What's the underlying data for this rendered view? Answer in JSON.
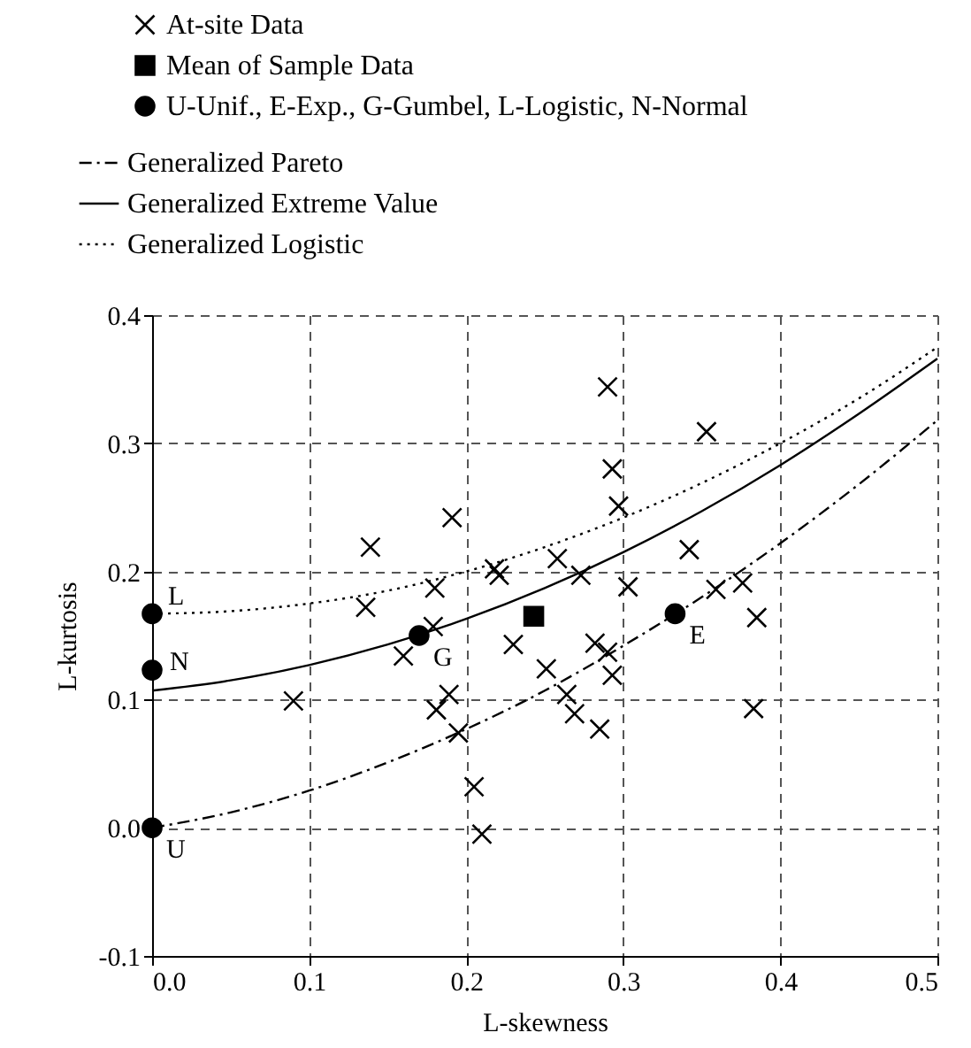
{
  "chart_data": {
    "type": "scatter",
    "xlabel": "L-skewness",
    "ylabel": "L-kurtosis",
    "xlim": [
      0,
      0.5
    ],
    "xticks": [
      {
        "value": 0,
        "label": "0.0"
      },
      0.1,
      0.2,
      0.3,
      0.4,
      0.5
    ],
    "ylim": [
      -0.1,
      0.4
    ],
    "yticks": [
      -0.1,
      {
        "value": 0,
        "label": "0.0"
      },
      0.1,
      0.2,
      0.3,
      0.4
    ],
    "grid": true,
    "legend": "top left",
    "series": [
      {
        "name": "At-site Data",
        "type": "scatter",
        "marker": "cross",
        "color": "#000000",
        "x": [
          0.09,
          0.139,
          0.136,
          0.191,
          0.18,
          0.16,
          0.179,
          0.189,
          0.181,
          0.195,
          0.205,
          0.21,
          0.218,
          0.221,
          0.258,
          0.29,
          0.353,
          0.293,
          0.297,
          0.273,
          0.303,
          0.342,
          0.359,
          0.376,
          0.385,
          0.383,
          0.23,
          0.251,
          0.282,
          0.29,
          0.293,
          0.264,
          0.269,
          0.285
        ],
        "values": [
          0.099,
          0.219,
          0.172,
          0.242,
          0.187,
          0.134,
          0.157,
          0.104,
          0.092,
          0.074,
          0.032,
          -0.005,
          0.202,
          0.197,
          0.21,
          0.344,
          0.309,
          0.28,
          0.251,
          0.197,
          0.188,
          0.217,
          0.186,
          0.191,
          0.164,
          0.093,
          0.143,
          0.124,
          0.144,
          0.137,
          0.119,
          0.104,
          0.089,
          0.077
        ]
      },
      {
        "name": "Mean of Sample Data",
        "type": "scatter",
        "marker": "square",
        "color": "#000000",
        "x": [
          0.243
        ],
        "values": [
          0.165
        ]
      },
      {
        "name": "U-Unif., E-Exp., G-Gumbel, L-Logistic, N-Normal",
        "type": "scatter",
        "marker": "circle",
        "color": "#000000",
        "x": [
          0,
          0.333,
          0.17,
          0,
          0
        ],
        "values": [
          0,
          0.167,
          0.15,
          0.167,
          0.123
        ]
      },
      {
        "name": "Generalized Pareto",
        "type": "line",
        "line_style": "dashed",
        "color": "#000000",
        "x": [
          0,
          0.05,
          0.1,
          0.15,
          0.2,
          0.25,
          0.3,
          0.35,
          0.4,
          0.45,
          0.5
        ],
        "values": [
          0,
          0.012,
          0.029,
          0.051,
          0.077,
          0.107,
          0.142,
          0.18,
          0.222,
          0.268,
          0.318
        ]
      },
      {
        "name": "Generalized Extreme Value",
        "type": "line",
        "line_style": "solid",
        "color": "#000000",
        "x": [
          0,
          0.05,
          0.1,
          0.15,
          0.2,
          0.25,
          0.3,
          0.35,
          0.4,
          0.45,
          0.5
        ],
        "values": [
          0.107,
          0.115,
          0.127,
          0.143,
          0.163,
          0.187,
          0.215,
          0.247,
          0.283,
          0.323,
          0.366
        ]
      },
      {
        "name": "Generalized Logistic",
        "type": "line",
        "line_style": "dotted",
        "color": "#000000",
        "x": [
          0,
          0.05,
          0.1,
          0.15,
          0.2,
          0.25,
          0.3,
          0.35,
          0.4,
          0.45,
          0.5
        ],
        "values": [
          0.167,
          0.169,
          0.175,
          0.185,
          0.2,
          0.219,
          0.242,
          0.269,
          0.3,
          0.335,
          0.375
        ]
      }
    ],
    "annotations": [
      {
        "text": "U",
        "x": 0,
        "y": 0
      },
      {
        "text": "E",
        "x": 0.333,
        "y": 0.167
      },
      {
        "text": "G",
        "x": 0.17,
        "y": 0.15
      },
      {
        "text": "L",
        "x": 0,
        "y": 0.167
      },
      {
        "text": "N",
        "x": 0,
        "y": 0.123
      }
    ]
  }
}
